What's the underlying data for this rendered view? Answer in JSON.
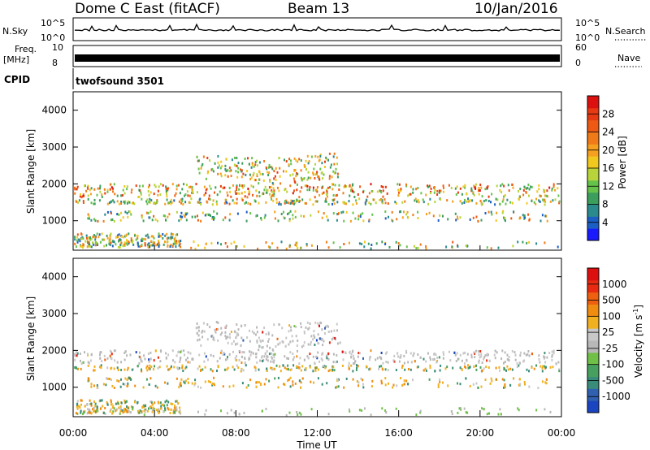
{
  "header": {
    "title": "Dome C East (fitACF)",
    "beam": "Beam 13",
    "date": "10/Jan/2016"
  },
  "panels": {
    "nsky": {
      "label": "N.Sky",
      "tick_top": "10^5",
      "tick_bottom": "10^0"
    },
    "nsearch": {
      "label": "N.Search",
      "tick_top": "10^5",
      "tick_bottom": "10^0"
    },
    "freq": {
      "label_line1": "Freq.",
      "label_line2": "[MHz]",
      "tick_top": "10",
      "tick_bottom": "8"
    },
    "nave": {
      "label": "Nave",
      "tick_top": "60",
      "tick_bottom": "0"
    },
    "cpid": {
      "label": "CPID",
      "value": "twofsound 3501"
    }
  },
  "chart_data": [
    {
      "type": "heatmap",
      "name": "power",
      "ylabel": "Slant Range [km]",
      "yticks": [
        1000,
        2000,
        3000,
        4000
      ],
      "ylim": [
        200,
        4500
      ],
      "colorbar": {
        "label": "Power [dB]",
        "ticks": [
          "4",
          "8",
          "12",
          "16",
          "20",
          "24",
          "28"
        ],
        "range": [
          0,
          32
        ],
        "colors": [
          "#1a1aff",
          "#1c5fc4",
          "#2a8a8c",
          "#3c9e5c",
          "#66c34a",
          "#b8d43a",
          "#f0c81e",
          "#f5a01e",
          "#f07a18",
          "#ee5a14",
          "#e83a12",
          "#dd1010"
        ]
      }
    },
    {
      "type": "heatmap",
      "name": "velocity",
      "ylabel": "Slant Range [km]",
      "xlabel": "Time UT",
      "xticks": [
        "00:00",
        "04:00",
        "08:00",
        "12:00",
        "16:00",
        "20:00",
        "00:00"
      ],
      "yticks": [
        1000,
        2000,
        3000,
        4000
      ],
      "ylim": [
        200,
        4500
      ],
      "colorbar": {
        "label": "Velocity [m s^-1]",
        "ticks": [
          "1000",
          "500",
          "100",
          "25",
          "-25",
          "-100",
          "-500",
          "-1000"
        ],
        "colors": [
          "#1a44c0",
          "#3060b0",
          "#3a8c7a",
          "#48a060",
          "#70c048",
          "#b8b8b8",
          "#c8c8c8",
          "#f0b020",
          "#f08c10",
          "#ee6010",
          "#e82a10",
          "#dd1010"
        ]
      }
    }
  ]
}
